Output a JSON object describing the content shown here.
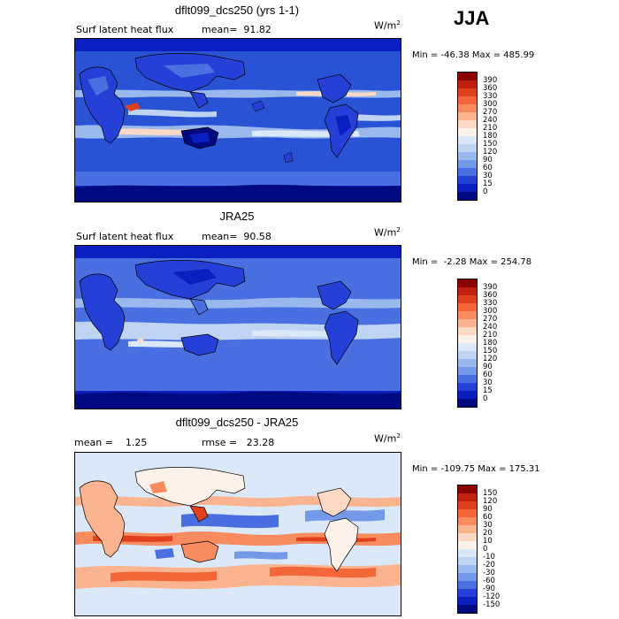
{
  "season": "JJA",
  "panels": [
    {
      "id": "model",
      "title": "dflt099_dcs250 (yrs 1-1)",
      "left_label": "Surf latent heat flux",
      "mid_label": "mean=  91.82",
      "units": "W/m",
      "units_sup": "2",
      "minmax": "Min = -46.38 Max = 485.99",
      "background": "#2a52d4",
      "colorbar": {
        "labels": [
          "390",
          "360",
          "330",
          "300",
          "270",
          "240",
          "210",
          "180",
          "150",
          "120",
          "90",
          "60",
          "30",
          "15",
          "0"
        ],
        "colors": [
          "#8b0000",
          "#c0200f",
          "#e0401c",
          "#f2663a",
          "#f98c5f",
          "#fcb38f",
          "#fcd9c4",
          "#fdf2e9",
          "#dbe8f8",
          "#bfd3f3",
          "#99b8ed",
          "#7399e8",
          "#4a6fe0",
          "#2440d6",
          "#0b1fc0",
          "#000a80"
        ]
      }
    },
    {
      "id": "obs",
      "title": "JRA25",
      "left_label": "Surf latent heat flux",
      "mid_label": "mean=  90.58",
      "units": "W/m",
      "units_sup": "2",
      "minmax": "Min =  -2.28 Max = 254.78",
      "background": "#2a52d4",
      "colorbar": {
        "labels": [
          "390",
          "360",
          "330",
          "300",
          "270",
          "240",
          "210",
          "180",
          "150",
          "120",
          "90",
          "60",
          "30",
          "15",
          "0"
        ],
        "colors": [
          "#8b0000",
          "#c0200f",
          "#e0401c",
          "#f2663a",
          "#f98c5f",
          "#fcb38f",
          "#fcd9c4",
          "#fdf2e9",
          "#dbe8f8",
          "#bfd3f3",
          "#99b8ed",
          "#7399e8",
          "#4a6fe0",
          "#2440d6",
          "#0b1fc0",
          "#000a80"
        ]
      }
    },
    {
      "id": "diff",
      "title": "dflt099_dcs250 - JRA25",
      "left_label": "mean =    1.25",
      "mid_label": "rmse =   23.28",
      "units": "W/m",
      "units_sup": "2",
      "minmax": "Min = -109.75 Max = 175.31",
      "background": "#dbe8f8",
      "colorbar": {
        "labels": [
          "150",
          "120",
          "90",
          "60",
          "30",
          "20",
          "10",
          "0",
          "-10",
          "-20",
          "-30",
          "-60",
          "-90",
          "-120",
          "-150"
        ],
        "colors": [
          "#8b0000",
          "#c0200f",
          "#e0401c",
          "#f2663a",
          "#f98c5f",
          "#fcb38f",
          "#fcd9c4",
          "#fdf2e9",
          "#dbe8f8",
          "#bfd3f3",
          "#99b8ed",
          "#7399e8",
          "#4a6fe0",
          "#2440d6",
          "#0b1fc0",
          "#000a80"
        ]
      }
    }
  ]
}
